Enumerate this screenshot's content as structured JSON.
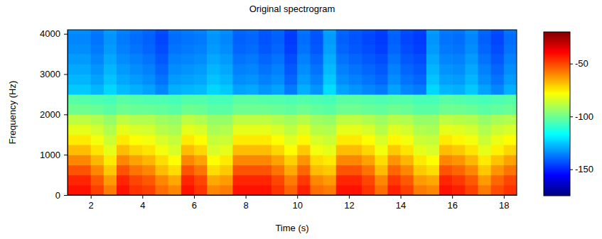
{
  "chart_data": {
    "type": "heatmap",
    "title": "Original spectrogram",
    "x_label": "Time (s)",
    "y_label": "Frequency (Hz)",
    "xlim": [
      1.1,
      18.5
    ],
    "ylim": [
      0,
      4100
    ],
    "xticks": [
      2,
      4,
      6,
      8,
      10,
      12,
      14,
      16,
      18
    ],
    "yticks": [
      0,
      1000,
      2000,
      3000,
      4000
    ],
    "x_edges": [
      1.1,
      1.5,
      2,
      2.5,
      3,
      3.5,
      4,
      4.5,
      5,
      5.5,
      6,
      6.5,
      7,
      7.5,
      8,
      8.5,
      9,
      9.5,
      10,
      10.5,
      11,
      11.5,
      12,
      12.5,
      13,
      13.5,
      14,
      14.5,
      15,
      15.5,
      16,
      16.5,
      17,
      17.5,
      18,
      18.5
    ],
    "y_edges": [
      0,
      250,
      500,
      750,
      1000,
      1250,
      1500,
      1750,
      2000,
      2250,
      2500,
      2750,
      3000,
      3250,
      3500,
      3750,
      4000,
      4100
    ],
    "cells": [
      [
        -42,
        -42,
        -49,
        -58,
        -42,
        -47,
        -49,
        -56,
        -60,
        -42,
        -47,
        -60,
        -58,
        -42,
        -42,
        -42,
        -47,
        -54,
        -44,
        -56,
        -58,
        -42,
        -42,
        -47,
        -56,
        -44,
        -49,
        -58,
        -60,
        -42,
        -44,
        -49,
        -58,
        -51,
        -47
      ],
      [
        -45,
        -45,
        -53,
        -63,
        -45,
        -50,
        -53,
        -60,
        -65,
        -45,
        -50,
        -65,
        -63,
        -45,
        -45,
        -45,
        -50,
        -58,
        -48,
        -60,
        -63,
        -45,
        -45,
        -50,
        -60,
        -48,
        -53,
        -63,
        -65,
        -45,
        -48,
        -53,
        -63,
        -55,
        -50
      ],
      [
        -52,
        -52,
        -60,
        -70,
        -52,
        -57,
        -60,
        -68,
        -73,
        -52,
        -57,
        -73,
        -70,
        -52,
        -52,
        -52,
        -57,
        -65,
        -55,
        -68,
        -70,
        -52,
        -52,
        -57,
        -68,
        -55,
        -60,
        -70,
        -73,
        -52,
        -55,
        -60,
        -70,
        -62,
        -57
      ],
      [
        -60,
        -60,
        -67,
        -75,
        -60,
        -64,
        -67,
        -73,
        -78,
        -60,
        -64,
        -78,
        -75,
        -60,
        -60,
        -60,
        -64,
        -71,
        -62,
        -73,
        -75,
        -60,
        -60,
        -64,
        -73,
        -62,
        -67,
        -75,
        -78,
        -60,
        -62,
        -67,
        -75,
        -69,
        -64
      ],
      [
        -68,
        -68,
        -74,
        -82,
        -68,
        -72,
        -74,
        -80,
        -84,
        -68,
        -72,
        -84,
        -82,
        -68,
        -68,
        -68,
        -72,
        -78,
        -70,
        -80,
        -82,
        -68,
        -68,
        -72,
        -80,
        -70,
        -74,
        -82,
        -84,
        -68,
        -70,
        -74,
        -82,
        -76,
        -72
      ],
      [
        -75,
        -75,
        -80,
        -86,
        -75,
        -78,
        -80,
        -84,
        -87,
        -75,
        -78,
        -87,
        -86,
        -75,
        -75,
        -75,
        -78,
        -83,
        -77,
        -84,
        -86,
        -75,
        -75,
        -78,
        -84,
        -77,
        -80,
        -86,
        -87,
        -75,
        -77,
        -80,
        -86,
        -81,
        -78
      ],
      [
        -82,
        -82,
        -85,
        -90,
        -82,
        -84,
        -85,
        -89,
        -91,
        -82,
        -84,
        -91,
        -90,
        -82,
        -82,
        -82,
        -84,
        -88,
        -83,
        -89,
        -90,
        -82,
        -82,
        -84,
        -89,
        -83,
        -85,
        -90,
        -91,
        -82,
        -83,
        -85,
        -90,
        -86,
        -84
      ],
      [
        -88,
        -88,
        -90,
        -94,
        -88,
        -90,
        -90,
        -93,
        -94,
        -88,
        -90,
        -94,
        -94,
        -88,
        -88,
        -88,
        -90,
        -92,
        -89,
        -93,
        -94,
        -88,
        -88,
        -90,
        -93,
        -89,
        -90,
        -94,
        -94,
        -88,
        -89,
        -90,
        -94,
        -91,
        -90
      ],
      [
        -100,
        -100,
        -101,
        -103,
        -100,
        -101,
        -101,
        -102,
        -103,
        -100,
        -101,
        -103,
        -103,
        -100,
        -100,
        -100,
        -101,
        -102,
        -100,
        -102,
        -103,
        -100,
        -100,
        -101,
        -102,
        -100,
        -101,
        -103,
        -103,
        -100,
        -100,
        -101,
        -103,
        -102,
        -101
      ],
      [
        -103,
        -104,
        -105,
        -106,
        -103,
        -104,
        -105,
        -105,
        -106,
        -104,
        -104,
        -106,
        -106,
        -103,
        -103,
        -104,
        -104,
        -105,
        -104,
        -105,
        -106,
        -103,
        -103,
        -104,
        -105,
        -104,
        -104,
        -106,
        -106,
        -103,
        -104,
        -105,
        -106,
        -105,
        -104
      ],
      [
        -125,
        -125,
        -128,
        -123,
        -127,
        -129,
        -131,
        -135,
        -129,
        -128,
        -127,
        -123,
        -125,
        -131,
        -130,
        -133,
        -131,
        -137,
        -129,
        -133,
        -122,
        -131,
        -133,
        -135,
        -137,
        -131,
        -135,
        -137,
        -123,
        -128,
        -129,
        -125,
        -131,
        -135,
        -129
      ],
      [
        -128,
        -128,
        -131,
        -126,
        -130,
        -132,
        -134,
        -138,
        -132,
        -131,
        -130,
        -126,
        -128,
        -134,
        -133,
        -136,
        -134,
        -140,
        -132,
        -136,
        -125,
        -134,
        -136,
        -138,
        -140,
        -134,
        -138,
        -140,
        -126,
        -131,
        -132,
        -128,
        -134,
        -138,
        -132
      ],
      [
        -130,
        -130,
        -133,
        -128,
        -132,
        -134,
        -136,
        -140,
        -134,
        -133,
        -132,
        -128,
        -130,
        -136,
        -135,
        -138,
        -136,
        -142,
        -134,
        -138,
        -127,
        -136,
        -138,
        -140,
        -142,
        -136,
        -140,
        -142,
        -128,
        -133,
        -134,
        -130,
        -136,
        -140,
        -134
      ],
      [
        -132,
        -132,
        -135,
        -130,
        -134,
        -136,
        -138,
        -142,
        -136,
        -135,
        -134,
        -130,
        -132,
        -138,
        -137,
        -140,
        -138,
        -144,
        -136,
        -140,
        -129,
        -138,
        -140,
        -142,
        -144,
        -138,
        -142,
        -144,
        -130,
        -135,
        -136,
        -132,
        -138,
        -142,
        -136
      ],
      [
        -134,
        -134,
        -137,
        -132,
        -136,
        -138,
        -140,
        -144,
        -138,
        -137,
        -136,
        -132,
        -134,
        -140,
        -139,
        -142,
        -140,
        -146,
        -138,
        -142,
        -131,
        -140,
        -142,
        -144,
        -146,
        -140,
        -144,
        -146,
        -132,
        -137,
        -138,
        -134,
        -140,
        -144,
        -138
      ],
      [
        -135,
        -135,
        -138,
        -133,
        -137,
        -139,
        -141,
        -145,
        -139,
        -138,
        -137,
        -133,
        -135,
        -141,
        -140,
        -143,
        -141,
        -147,
        -139,
        -143,
        -132,
        -141,
        -143,
        -145,
        -147,
        -141,
        -145,
        -147,
        -133,
        -138,
        -139,
        -135,
        -141,
        -145,
        -139
      ],
      [
        -134,
        -134,
        -137,
        -132,
        -136,
        -138,
        -140,
        -144,
        -138,
        -137,
        -136,
        -132,
        -134,
        -140,
        -139,
        -142,
        -140,
        -146,
        -138,
        -142,
        -131,
        -140,
        -142,
        -144,
        -146,
        -140,
        -144,
        -146,
        -132,
        -137,
        -138,
        -134,
        -140,
        -144,
        -138
      ]
    ],
    "color_range": [
      -175,
      -20
    ],
    "color_ticks": [
      -50,
      -100,
      -150
    ]
  }
}
